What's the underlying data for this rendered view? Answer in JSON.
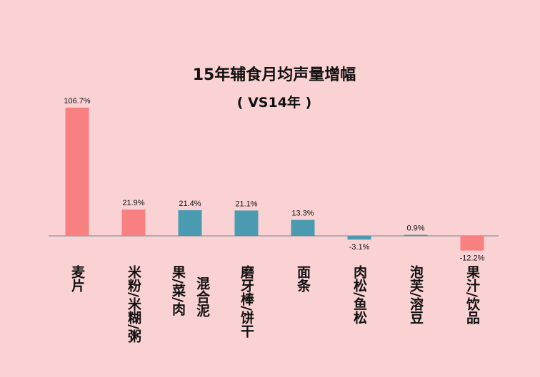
{
  "chart_data": {
    "type": "bar",
    "title": "15年辅食月均声量增幅",
    "subtitle": "( VS14年 )",
    "categories": [
      [
        "麦片"
      ],
      [
        "米粉/米糊/粥"
      ],
      [
        "果/菜/肉",
        "混合泥"
      ],
      [
        "磨牙棒/饼干"
      ],
      [
        "面条"
      ],
      [
        "肉松/鱼松"
      ],
      [
        "泡芙/溶豆"
      ],
      [
        "果汁/饮品"
      ]
    ],
    "values": [
      106.7,
      21.9,
      21.4,
      21.1,
      13.3,
      -3.1,
      0.9,
      -12.2
    ],
    "labels": [
      "106.7%",
      "21.9%",
      "21.4%",
      "21.1%",
      "13.3%",
      "-3.1%",
      "0.9%",
      "-12.2%"
    ],
    "bar_colors": [
      "#f88081",
      "#f88081",
      "#4a9ab0",
      "#4a9ab0",
      "#4a9ab0",
      "#4a9ab0",
      "#4a9ab0",
      "#f88081"
    ],
    "axis_color": "#9aa0a6",
    "background": "#fbd2d3",
    "grid": false,
    "legend": "none"
  }
}
